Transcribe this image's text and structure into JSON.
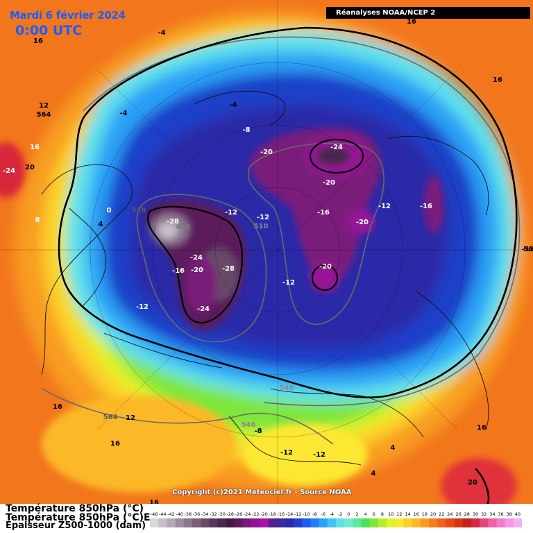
{
  "header": {
    "date": "Mardi 6 février 2024",
    "time": "0:00 UTC",
    "source": "Réanalyses NOAA/NCEP 2"
  },
  "footer": {
    "copyright": "Copyright (c)2021 Meteociel.fr - Source NOAA",
    "legend_line1": "Température 850hPa (°C)",
    "legend_line2": "Température 850hPa (°C)E",
    "legend_line3": "Epaisseur Z500-1000 (dam)"
  },
  "color_scale": {
    "labels": [
      "-46",
      "-44",
      "-42",
      "-40",
      "-38",
      "-36",
      "-34",
      "-32",
      "-30",
      "-28",
      "-26",
      "-24",
      "-22",
      "-20",
      "-18",
      "-16",
      "-14",
      "-12",
      "-10",
      "-8",
      "-6",
      "-4",
      "-2",
      "0",
      "2",
      "4",
      "6",
      "8",
      "10",
      "12",
      "14",
      "16",
      "18",
      "20",
      "22",
      "24",
      "26",
      "28",
      "30",
      "32",
      "34",
      "36",
      "38",
      "40"
    ],
    "colors": [
      "#d8d8d8",
      "#c6c0c6",
      "#b3a7b3",
      "#9f8e9f",
      "#8c768c",
      "#7a5f7a",
      "#684a68",
      "#583858",
      "#4a284d",
      "#3e1a44",
      "#5c1a5c",
      "#7a1a7a",
      "#961296",
      "#a814a8",
      "#5a1f8c",
      "#3b2a9a",
      "#2a2aa8",
      "#1f3fc8",
      "#1f5cf0",
      "#1f7ff6",
      "#2ca0f6",
      "#42c4f4",
      "#5ee0ec",
      "#74eccc",
      "#5ce89a",
      "#4fdf5a",
      "#7fe63a",
      "#b4ee2c",
      "#e2f22a",
      "#fce830",
      "#fcd02c",
      "#fcb826",
      "#f89c20",
      "#f4801c",
      "#ee6418",
      "#e44c16",
      "#d83414",
      "#c82016",
      "#d02a48",
      "#e0487a",
      "#ec62a6",
      "#f27ccc",
      "#f496e6",
      "#f4b0f4"
    ]
  },
  "map_labels": [
    {
      "text": "-4"
    },
    {
      "text": "16"
    },
    {
      "text": "16"
    },
    {
      "text": "12"
    },
    {
      "text": "564"
    },
    {
      "text": "16"
    },
    {
      "text": "-24"
    },
    {
      "text": "20"
    },
    {
      "text": "-4"
    },
    {
      "text": "-4"
    },
    {
      "text": "-8"
    },
    {
      "text": "-20"
    },
    {
      "text": "-24"
    },
    {
      "text": "-20"
    },
    {
      "text": "-16"
    },
    {
      "text": "-12"
    },
    {
      "text": "-16"
    },
    {
      "text": "-20"
    },
    {
      "text": "528"
    },
    {
      "text": "-28"
    },
    {
      "text": "492"
    },
    {
      "text": "-12"
    },
    {
      "text": "-12"
    },
    {
      "text": "510"
    },
    {
      "text": "8"
    },
    {
      "text": "0"
    },
    {
      "text": "4"
    },
    {
      "text": "-24"
    },
    {
      "text": "-16"
    },
    {
      "text": "-20"
    },
    {
      "text": "-28"
    },
    {
      "text": "-20"
    },
    {
      "text": "-12"
    },
    {
      "text": "-24"
    },
    {
      "text": "-12"
    },
    {
      "text": "-12"
    },
    {
      "text": "540"
    },
    {
      "text": "16"
    },
    {
      "text": "12"
    },
    {
      "text": "564"
    },
    {
      "text": "16"
    },
    {
      "text": "-8"
    },
    {
      "text": "546"
    },
    {
      "text": "-12"
    },
    {
      "text": "-12"
    },
    {
      "text": "4"
    },
    {
      "text": "4"
    },
    {
      "text": "16"
    },
    {
      "text": "16"
    },
    {
      "text": "20"
    },
    {
      "text": "16"
    },
    {
      "text": "56"
    },
    {
      "text": "20"
    }
  ]
}
